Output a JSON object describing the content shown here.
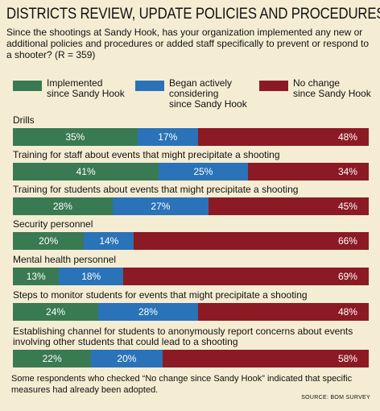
{
  "chart_data": {
    "type": "bar",
    "orientation": "horizontal",
    "stacked": true,
    "title": "DISTRICTS REVIEW, UPDATE POLICIES AND PROCEDURES",
    "subtitle": "Since the shootings at Sandy Hook, has your organization implemented any new or additional policies and procedures or added staff specifically to prevent or respond to a shooter?  (R = 359)",
    "unit": "%",
    "colors": [
      "#3a7a52",
      "#2a73b8",
      "#8b1a24"
    ],
    "series": [
      {
        "name": "Implemented since Sandy Hook"
      },
      {
        "name": "Began actively considering since Sandy Hook"
      },
      {
        "name": "No change since Sandy Hook"
      }
    ],
    "legend_labels": [
      [
        "Implemented",
        "since Sandy Hook"
      ],
      [
        "Began actively",
        "considering",
        "since Sandy Hook"
      ],
      [
        "No change",
        "since Sandy Hook"
      ]
    ],
    "categories": [
      {
        "label": [
          "Drills"
        ],
        "values": [
          35,
          17,
          48
        ]
      },
      {
        "label": [
          "Training for staff about events that might precipitate a shooting"
        ],
        "values": [
          41,
          25,
          34
        ]
      },
      {
        "label": [
          "Training for students about events that might precipitate a shooting"
        ],
        "values": [
          28,
          27,
          45
        ]
      },
      {
        "label": [
          "Security personnel"
        ],
        "values": [
          20,
          14,
          66
        ]
      },
      {
        "label": [
          "Mental health personnel"
        ],
        "values": [
          13,
          18,
          69
        ]
      },
      {
        "label": [
          "Steps to monitor students for events that might precipitate a shooting"
        ],
        "values": [
          24,
          28,
          48
        ]
      },
      {
        "label": [
          "Establishing channel for students to anonymously report concerns about events",
          "involving other students that could lead to a shooting"
        ],
        "values": [
          22,
          20,
          58
        ]
      }
    ],
    "footnote": "Some respondents who checked “No change since Sandy Hook” indicated that specific measures had already been adopted.",
    "source": "SOURCE: BOM SURVEY"
  }
}
